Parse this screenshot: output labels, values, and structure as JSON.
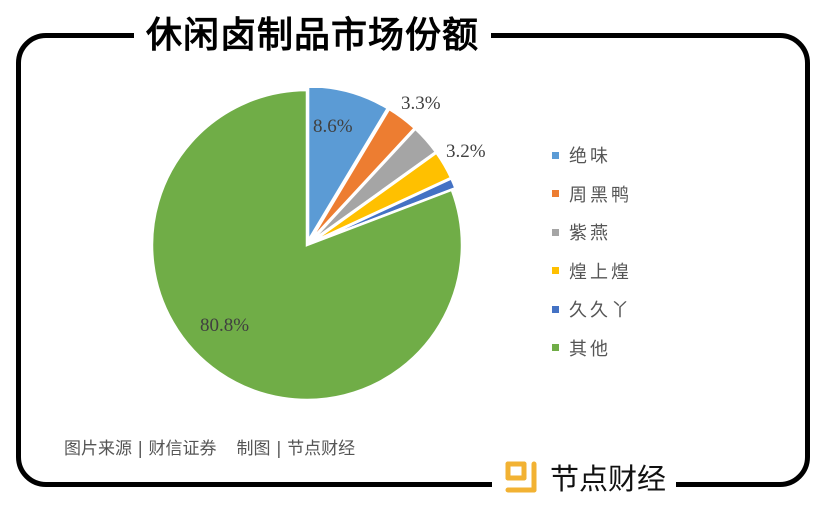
{
  "header": {
    "title": "休闲卤制品市场份额"
  },
  "chart_data": {
    "type": "pie",
    "title": "休闲卤制品市场份额",
    "start_angle_deg": 0,
    "direction": "clockwise",
    "categories": [
      "绝味",
      "周黑鸭",
      "紫燕",
      "煌上煌",
      "久久丫",
      "其他"
    ],
    "values": [
      8.6,
      3.3,
      3.2,
      3.0,
      1.1,
      80.8
    ],
    "colors": [
      "#5b9bd5",
      "#ed7d31",
      "#a5a5a5",
      "#ffc000",
      "#4472c4",
      "#70ad47"
    ],
    "data_labels": [
      {
        "text": "8.6%",
        "series": "绝味"
      },
      {
        "text": "3.3%",
        "series": "周黑鸭"
      },
      {
        "text": "3.2%",
        "series": "紫燕"
      },
      {
        "text": "80.8%",
        "series": "其他"
      }
    ],
    "legend_position": "right"
  },
  "labels": {
    "l1": "8.6%",
    "l2": "3.3%",
    "l3": "3.2%",
    "l4": "80.8%"
  },
  "legend": [
    {
      "label": "绝味",
      "color": "#5b9bd5"
    },
    {
      "label": "周黑鸭",
      "color": "#ed7d31"
    },
    {
      "label": "紫燕",
      "color": "#a5a5a5"
    },
    {
      "label": "煌上煌",
      "color": "#ffc000"
    },
    {
      "label": "久久丫",
      "color": "#4472c4"
    },
    {
      "label": "其他",
      "color": "#70ad47"
    }
  ],
  "footer": {
    "source": "图片来源 | 财信证券",
    "made_by": "制图 | 节点财经"
  },
  "brand": {
    "name": "节点财经",
    "logo_color": "#f2b233"
  }
}
